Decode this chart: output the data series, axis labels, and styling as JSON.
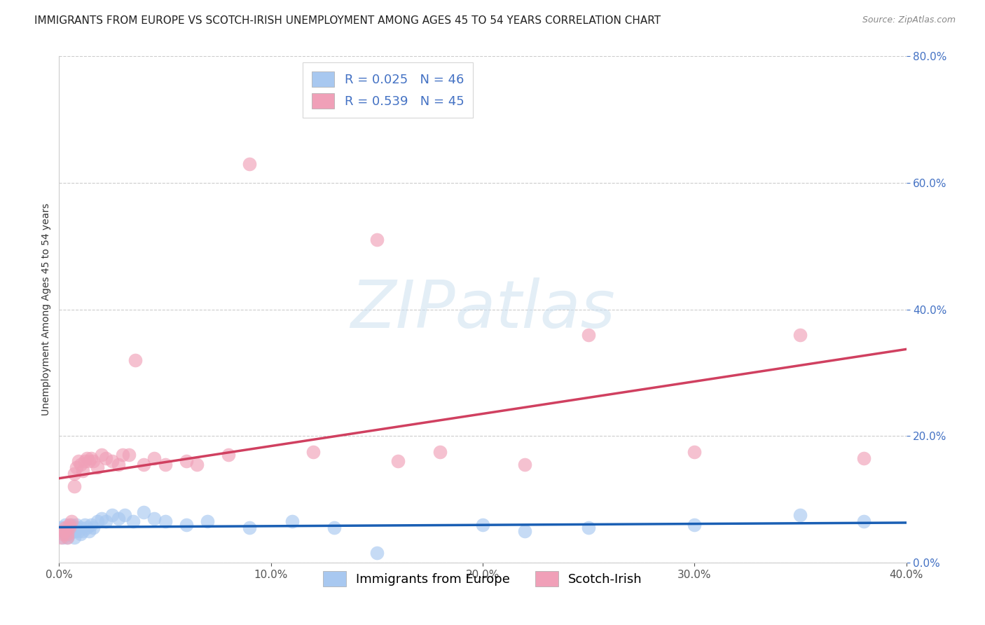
{
  "title": "IMMIGRANTS FROM EUROPE VS SCOTCH-IRISH UNEMPLOYMENT AMONG AGES 45 TO 54 YEARS CORRELATION CHART",
  "source": "Source: ZipAtlas.com",
  "ylabel": "Unemployment Among Ages 45 to 54 years",
  "xlim": [
    0.0,
    0.4
  ],
  "ylim": [
    0.0,
    0.8
  ],
  "xticks": [
    0.0,
    0.1,
    0.2,
    0.3,
    0.4
  ],
  "yticks": [
    0.0,
    0.2,
    0.4,
    0.6,
    0.8
  ],
  "grid_color": "#cccccc",
  "background_color": "#ffffff",
  "watermark_text": "ZIPatlas",
  "series": [
    {
      "label": "Immigrants from Europe",
      "R": 0.025,
      "N": 46,
      "dot_color": "#a8c8f0",
      "line_color": "#1a5fb4",
      "x": [
        0.001,
        0.002,
        0.002,
        0.003,
        0.003,
        0.004,
        0.004,
        0.005,
        0.005,
        0.006,
        0.006,
        0.007,
        0.007,
        0.008,
        0.008,
        0.009,
        0.01,
        0.01,
        0.011,
        0.012,
        0.013,
        0.014,
        0.015,
        0.016,
        0.018,
        0.02,
        0.022,
        0.025,
        0.028,
        0.031,
        0.035,
        0.04,
        0.045,
        0.05,
        0.06,
        0.07,
        0.09,
        0.11,
        0.13,
        0.15,
        0.2,
        0.22,
        0.25,
        0.3,
        0.35,
        0.38
      ],
      "y": [
        0.055,
        0.05,
        0.04,
        0.045,
        0.06,
        0.05,
        0.04,
        0.055,
        0.045,
        0.05,
        0.06,
        0.05,
        0.04,
        0.055,
        0.06,
        0.05,
        0.055,
        0.045,
        0.05,
        0.06,
        0.055,
        0.05,
        0.06,
        0.055,
        0.065,
        0.07,
        0.065,
        0.075,
        0.07,
        0.075,
        0.065,
        0.08,
        0.07,
        0.065,
        0.06,
        0.065,
        0.055,
        0.065,
        0.055,
        0.015,
        0.06,
        0.05,
        0.055,
        0.06,
        0.075,
        0.065
      ]
    },
    {
      "label": "Scotch-Irish",
      "R": 0.539,
      "N": 45,
      "dot_color": "#f0a0b8",
      "line_color": "#d04060",
      "x": [
        0.001,
        0.002,
        0.002,
        0.003,
        0.003,
        0.004,
        0.004,
        0.005,
        0.005,
        0.006,
        0.007,
        0.007,
        0.008,
        0.009,
        0.01,
        0.011,
        0.012,
        0.013,
        0.014,
        0.015,
        0.016,
        0.018,
        0.02,
        0.022,
        0.025,
        0.028,
        0.03,
        0.033,
        0.036,
        0.04,
        0.045,
        0.05,
        0.06,
        0.065,
        0.08,
        0.09,
        0.12,
        0.15,
        0.16,
        0.18,
        0.22,
        0.25,
        0.3,
        0.35,
        0.38
      ],
      "y": [
        0.04,
        0.05,
        0.045,
        0.05,
        0.055,
        0.045,
        0.04,
        0.06,
        0.055,
        0.065,
        0.12,
        0.14,
        0.15,
        0.16,
        0.155,
        0.145,
        0.16,
        0.165,
        0.16,
        0.165,
        0.16,
        0.15,
        0.17,
        0.165,
        0.16,
        0.155,
        0.17,
        0.17,
        0.32,
        0.155,
        0.165,
        0.155,
        0.16,
        0.155,
        0.17,
        0.63,
        0.175,
        0.51,
        0.16,
        0.175,
        0.155,
        0.36,
        0.175,
        0.36,
        0.165
      ]
    }
  ],
  "title_fontsize": 11,
  "source_fontsize": 9,
  "axis_label_fontsize": 10,
  "tick_fontsize": 11,
  "legend_fontsize": 13
}
